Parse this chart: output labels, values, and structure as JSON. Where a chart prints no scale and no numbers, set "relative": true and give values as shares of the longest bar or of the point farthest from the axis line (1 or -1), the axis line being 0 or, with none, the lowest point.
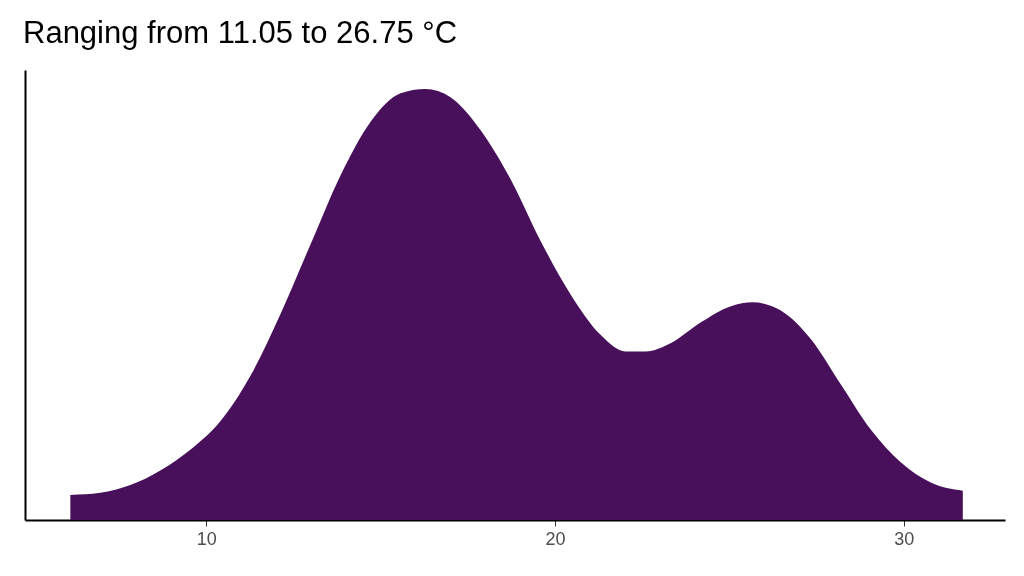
{
  "chart_data": {
    "type": "area",
    "title": "Ranging from 11.05 to 26.75 °C",
    "relative": true,
    "color": "#480f5a",
    "x": [
      6.1,
      6.96,
      7.82,
      8.68,
      9.54,
      10.4,
      11.26,
      12.12,
      12.98,
      13.85,
      14.71,
      15.57,
      16.28,
      17.0,
      17.86,
      18.72,
      19.58,
      20.44,
      21.31,
      22.02,
      22.6,
      23.31,
      24.17,
      25.04,
      25.67,
      26.47,
      27.33,
      28.19,
      29.05,
      29.91,
      30.77,
      31.69
    ],
    "values": [
      0.058,
      0.063,
      0.081,
      0.115,
      0.163,
      0.229,
      0.334,
      0.477,
      0.638,
      0.8,
      0.924,
      0.99,
      1.0,
      0.981,
      0.905,
      0.791,
      0.648,
      0.524,
      0.429,
      0.391,
      0.391,
      0.41,
      0.458,
      0.496,
      0.505,
      0.486,
      0.42,
      0.315,
      0.21,
      0.134,
      0.087,
      0.068
    ],
    "xlim": [
      4.8,
      32.9
    ],
    "xticks": [
      10,
      20,
      30
    ]
  }
}
